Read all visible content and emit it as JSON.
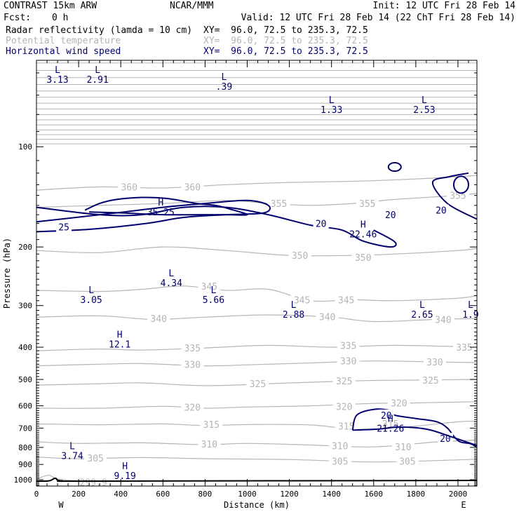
{
  "header": {
    "model": "CONTRAST 15km ARW",
    "center": "NCAR/MMM",
    "init": "Init: 12 UTC Fri 28 Feb 14",
    "fcst_label": "Fcst:",
    "fcst_value": "0 h",
    "valid": "Valid: 12 UTC Fri 28 Feb 14 (22 ChT Fri 28 Feb 14)"
  },
  "fields": [
    {
      "name": "Radar reflectivity (lamda = 10 cm)",
      "xy": "XY=  96.0, 72.5 to 235.3, 72.5",
      "color": "#000000"
    },
    {
      "name": "Potential temperature",
      "xy": "XY=  96.0, 72.5 to 235.3, 72.5",
      "color": "#b4b4b4"
    },
    {
      "name": "Horizontal wind speed",
      "xy": "XY=  96.0, 72.5 to 235.3, 72.5",
      "color": "#00006e"
    }
  ],
  "colors": {
    "theta": "#b4b4b4",
    "wind": "#00006e",
    "ground": "#000000"
  },
  "chart_data": {
    "type": "line",
    "xlabel": "Distance (km)",
    "ylabel": "Pressure (hPa)",
    "xlim": [
      0,
      2090
    ],
    "ylim": [
      1045,
      55
    ],
    "y_scale": "log",
    "xticks": [
      0,
      200,
      400,
      600,
      800,
      1000,
      1200,
      1400,
      1600,
      1800,
      2000
    ],
    "yticks": [
      100,
      200,
      300,
      400,
      500,
      600,
      700,
      800,
      900,
      1000
    ],
    "x_end_labels": {
      "left": "W",
      "right": "E"
    },
    "theta_contours": [
      {
        "level": "305",
        "pts": [
          [
            0,
            855
          ],
          [
            200,
            865
          ],
          [
            500,
            858
          ],
          [
            800,
            865
          ],
          [
            1200,
            870
          ],
          [
            1600,
            885
          ],
          [
            2000,
            872
          ],
          [
            2090,
            868
          ]
        ],
        "labels": [
          [
            280,
            860
          ],
          [
            1440,
            880
          ],
          [
            1760,
            880
          ]
        ]
      },
      {
        "level": "310",
        "pts": [
          [
            0,
            770
          ],
          [
            200,
            778
          ],
          [
            500,
            775
          ],
          [
            800,
            785
          ],
          [
            1000,
            778
          ],
          [
            1300,
            787
          ],
          [
            1600,
            797
          ],
          [
            1900,
            770
          ],
          [
            2090,
            760
          ]
        ],
        "labels": [
          [
            820,
            782
          ],
          [
            1440,
            790
          ],
          [
            1740,
            796
          ]
        ]
      },
      {
        "level": "315",
        "pts": [
          [
            0,
            680
          ],
          [
            300,
            684
          ],
          [
            600,
            680
          ],
          [
            800,
            688
          ],
          [
            1000,
            683
          ],
          [
            1300,
            685
          ],
          [
            1500,
            705
          ],
          [
            1700,
            700
          ],
          [
            2000,
            670
          ],
          [
            2090,
            668
          ]
        ],
        "labels": [
          [
            830,
            682
          ],
          [
            1470,
            690
          ],
          [
            1680,
            678
          ]
        ]
      },
      {
        "level": "320",
        "pts": [
          [
            0,
            610
          ],
          [
            300,
            610
          ],
          [
            600,
            602
          ],
          [
            800,
            610
          ],
          [
            1000,
            605
          ],
          [
            1300,
            600
          ],
          [
            1600,
            590
          ],
          [
            1800,
            588
          ],
          [
            2090,
            583
          ]
        ],
        "labels": [
          [
            740,
            605
          ],
          [
            1460,
            603
          ],
          [
            1720,
            588
          ]
        ]
      },
      {
        "level": "325",
        "pts": [
          [
            0,
            520
          ],
          [
            300,
            515
          ],
          [
            500,
            512
          ],
          [
            800,
            522
          ],
          [
            1100,
            515
          ],
          [
            1500,
            505
          ],
          [
            1800,
            502
          ],
          [
            2090,
            500
          ]
        ],
        "labels": [
          [
            1050,
            515
          ],
          [
            1460,
            505
          ],
          [
            1870,
            502
          ]
        ]
      },
      {
        "level": "330",
        "pts": [
          [
            0,
            455
          ],
          [
            300,
            450
          ],
          [
            500,
            448
          ],
          [
            800,
            455
          ],
          [
            1000,
            452
          ],
          [
            1300,
            446
          ],
          [
            1600,
            440
          ],
          [
            1900,
            443
          ],
          [
            2090,
            445
          ]
        ],
        "labels": [
          [
            740,
            450
          ],
          [
            1480,
            440
          ],
          [
            1890,
            443
          ]
        ]
      },
      {
        "level": "335",
        "pts": [
          [
            0,
            410
          ],
          [
            300,
            405
          ],
          [
            500,
            408
          ],
          [
            800,
            402
          ],
          [
            1100,
            395
          ],
          [
            1400,
            400
          ],
          [
            1700,
            395
          ],
          [
            2090,
            400
          ]
        ],
        "labels": [
          [
            740,
            402
          ],
          [
            1480,
            395
          ],
          [
            2030,
            400
          ]
        ]
      },
      {
        "level": "340",
        "pts": [
          [
            0,
            325
          ],
          [
            300,
            322
          ],
          [
            550,
            330
          ],
          [
            800,
            325
          ],
          [
            1100,
            320
          ],
          [
            1400,
            325
          ],
          [
            1600,
            335
          ],
          [
            1900,
            330
          ],
          [
            2090,
            328
          ]
        ],
        "labels": [
          [
            580,
            328
          ],
          [
            1380,
            324
          ],
          [
            1930,
            330
          ]
        ]
      },
      {
        "level": "345",
        "pts": [
          [
            0,
            270
          ],
          [
            300,
            272
          ],
          [
            500,
            268
          ],
          [
            700,
            262
          ],
          [
            900,
            270
          ],
          [
            1100,
            268
          ],
          [
            1300,
            290
          ],
          [
            1500,
            288
          ],
          [
            1700,
            290
          ],
          [
            2000,
            285
          ],
          [
            2090,
            280
          ]
        ],
        "labels": [
          [
            820,
            262
          ],
          [
            1260,
            288
          ],
          [
            1470,
            288
          ]
        ]
      },
      {
        "level": "350",
        "pts": [
          [
            0,
            205
          ],
          [
            300,
            208
          ],
          [
            600,
            200
          ],
          [
            900,
            205
          ],
          [
            1200,
            212
          ],
          [
            1500,
            212
          ],
          [
            1700,
            210
          ],
          [
            2000,
            205
          ],
          [
            2090,
            202
          ]
        ],
        "labels": [
          [
            1250,
            212
          ],
          [
            1550,
            215
          ]
        ]
      },
      {
        "level": "355",
        "pts": [
          [
            0,
            152
          ],
          [
            300,
            150
          ],
          [
            600,
            148
          ],
          [
            900,
            145
          ],
          [
            1100,
            148
          ],
          [
            1300,
            150
          ],
          [
            1500,
            148
          ],
          [
            1700,
            144
          ],
          [
            2000,
            140
          ],
          [
            2090,
            138
          ]
        ],
        "labels": [
          [
            1150,
            148
          ],
          [
            1570,
            148
          ],
          [
            2000,
            140
          ]
        ]
      },
      {
        "level": "360",
        "pts": [
          [
            0,
            135
          ],
          [
            300,
            132
          ],
          [
            600,
            133
          ],
          [
            900,
            130
          ],
          [
            1200,
            128
          ],
          [
            1500,
            127
          ],
          [
            1800,
            125
          ],
          [
            2090,
            122
          ]
        ],
        "labels": [
          [
            440,
            132
          ],
          [
            740,
            132
          ]
        ]
      },
      {
        "level": "299.9",
        "pts": [
          [
            0,
            1000
          ],
          [
            20,
            985
          ],
          [
            60,
            970
          ],
          [
            100,
            995
          ],
          [
            200,
            1008
          ],
          [
            350,
            1010
          ]
        ],
        "labels": [
          [
            270,
            1018
          ]
        ]
      }
    ],
    "wind_contours": [
      {
        "level": "20",
        "pts": [
          [
            0,
            152
          ],
          [
            300,
            160
          ],
          [
            500,
            160
          ],
          [
            700,
            152
          ],
          [
            900,
            152
          ],
          [
            1100,
            160
          ],
          [
            1300,
            172
          ],
          [
            1450,
            178
          ],
          [
            1550,
            192
          ],
          [
            1680,
            200
          ],
          [
            1700,
            193
          ],
          [
            1600,
            178
          ]
        ],
        "labels": [
          [
            1350,
            170
          ],
          [
            1680,
            160
          ]
        ]
      },
      {
        "level": "25",
        "pts": [
          [
            0,
            180
          ],
          [
            250,
            177
          ],
          [
            520,
            170
          ],
          [
            700,
            163
          ],
          [
            900,
            160
          ],
          [
            1080,
            158
          ],
          [
            1100,
            150
          ],
          [
            1000,
            145
          ],
          [
            800,
            148
          ],
          [
            600,
            152
          ],
          [
            380,
            158
          ],
          [
            0,
            168
          ]
        ],
        "labels": [
          [
            130,
            174
          ]
        ]
      },
      {
        "level": "35",
        "pts": [
          [
            230,
            155
          ],
          [
            300,
            148
          ],
          [
            380,
            144
          ],
          [
            500,
            142
          ],
          [
            620,
            143
          ],
          [
            760,
            148
          ],
          [
            850,
            150
          ],
          [
            920,
            154
          ],
          [
            1000,
            160
          ],
          [
            900,
            160
          ],
          [
            780,
            160
          ],
          [
            600,
            160
          ],
          [
            400,
            158
          ],
          [
            250,
            157
          ]
        ],
        "labels": []
      },
      {
        "level": "20",
        "pts": [
          [
            1500,
            710
          ],
          [
            1520,
            640
          ],
          [
            1600,
            615
          ],
          [
            1680,
            620
          ],
          [
            1700,
            640
          ],
          [
            1800,
            655
          ],
          [
            1900,
            670
          ],
          [
            1950,
            700
          ],
          [
            1980,
            740
          ],
          [
            2010,
            770
          ],
          [
            2060,
            780
          ],
          [
            2090,
            800
          ]
        ],
        "labels": [
          [
            1660,
            640
          ],
          [
            1940,
            752
          ]
        ]
      },
      {
        "level": "",
        "pts": [
          [
            1500,
            710
          ],
          [
            1620,
            705
          ],
          [
            1720,
            695
          ],
          [
            1850,
            705
          ],
          [
            1960,
            740
          ],
          [
            2090,
            790
          ]
        ],
        "labels": []
      },
      {
        "level": "",
        "pts": [
          [
            2050,
            120
          ],
          [
            1960,
            123
          ],
          [
            1880,
            128
          ],
          [
            1950,
            148
          ],
          [
            2090,
            165
          ]
        ],
        "labels": [
          [
            1920,
            155
          ]
        ]
      }
    ],
    "wind_closed": [
      {
        "center": [
          1700,
          115
        ],
        "r": [
          30,
          6
        ]
      },
      {
        "center": [
          2015,
          130
        ],
        "r": [
          35,
          12
        ]
      }
    ],
    "extrema": [
      {
        "type": "L",
        "value": "3.13",
        "x": 100,
        "y": 60
      },
      {
        "type": "L",
        "value": "2.91",
        "x": 290,
        "y": 60
      },
      {
        "type": "L",
        "value": ".39",
        "x": 890,
        "y": 63
      },
      {
        "type": "L",
        "value": "1.33",
        "x": 1400,
        "y": 74
      },
      {
        "type": "L",
        "value": "2.53",
        "x": 1840,
        "y": 74
      },
      {
        "type": "H",
        "value": "35.25",
        "x": 590,
        "y": 150
      },
      {
        "type": "H",
        "value": "22.46",
        "x": 1550,
        "y": 175
      },
      {
        "type": "L",
        "value": "4.34",
        "x": 640,
        "y": 245
      },
      {
        "type": "L",
        "value": "3.05",
        "x": 260,
        "y": 275
      },
      {
        "type": "L",
        "value": "5.66",
        "x": 840,
        "y": 275
      },
      {
        "type": "L",
        "value": "2.88",
        "x": 1220,
        "y": 305
      },
      {
        "type": "L",
        "value": "2.65",
        "x": 1830,
        "y": 305
      },
      {
        "type": "L",
        "value": "1.9",
        "x": 2060,
        "y": 305
      },
      {
        "type": "H",
        "value": "12.1",
        "x": 395,
        "y": 375
      },
      {
        "type": "H",
        "value": "21.26",
        "x": 1680,
        "y": 670
      },
      {
        "type": "L",
        "value": "3.74",
        "x": 170,
        "y": 810
      },
      {
        "type": "H",
        "value": "9.19",
        "x": 420,
        "y": 930
      }
    ],
    "ground": {
      "pts": [
        [
          0,
          1010
        ],
        [
          60,
          1008
        ],
        [
          90,
          990
        ],
        [
          120,
          1008
        ],
        [
          300,
          1010
        ],
        [
          2090,
          1005
        ]
      ]
    }
  }
}
